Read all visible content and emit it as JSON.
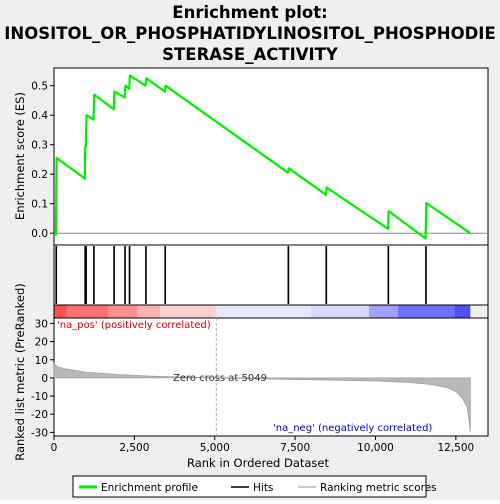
{
  "chart_data": {
    "type": "line",
    "title_lines": [
      "Enrichment plot:",
      "INOSITOL_OR_PHOSPHATIDYLINOSITOL_PHOSPHODIE",
      "STERASE_ACTIVITY"
    ],
    "top_panel": {
      "ylabel": "Enrichment score (ES)",
      "ylim": [
        -0.04,
        0.56
      ],
      "yticks": [
        0.0,
        0.1,
        0.2,
        0.3,
        0.4,
        0.5
      ],
      "ytick_labels": [
        "0.0",
        "0.1",
        "0.2",
        "0.3",
        "0.4",
        "0.5"
      ],
      "series_name": "Enrichment profile",
      "color": "#00ee00",
      "points": [
        [
          0,
          0.0
        ],
        [
          60,
          -0.005
        ],
        [
          80,
          0.255
        ],
        [
          960,
          0.185
        ],
        [
          970,
          0.295
        ],
        [
          990,
          0.295
        ],
        [
          1010,
          0.4
        ],
        [
          1230,
          0.385
        ],
        [
          1250,
          0.47
        ],
        [
          1860,
          0.42
        ],
        [
          1880,
          0.48
        ],
        [
          2200,
          0.46
        ],
        [
          2220,
          0.5
        ],
        [
          2340,
          0.49
        ],
        [
          2360,
          0.535
        ],
        [
          2850,
          0.5
        ],
        [
          2870,
          0.525
        ],
        [
          3450,
          0.48
        ],
        [
          3470,
          0.5
        ],
        [
          7280,
          0.205
        ],
        [
          7300,
          0.22
        ],
        [
          8460,
          0.13
        ],
        [
          8480,
          0.155
        ],
        [
          10390,
          0.015
        ],
        [
          10410,
          0.075
        ],
        [
          11560,
          -0.018
        ],
        [
          11580,
          0.102
        ],
        [
          12950,
          0.0
        ]
      ]
    },
    "hits": {
      "label": "Hits",
      "positions": [
        60,
        80,
        960,
        970,
        990,
        1010,
        1230,
        1250,
        1860,
        1880,
        2200,
        2220,
        2340,
        2360,
        2850,
        2870,
        3450,
        3470,
        7280,
        7300,
        8460,
        8480,
        10390,
        10410,
        11560,
        11580
      ]
    },
    "heat_band": {
      "colors": [
        "#ff5050",
        "#ff7070",
        "#ff9090",
        "#ffb0b0",
        "#ffd0d0",
        "#e8e8ff",
        "#d8d8ff",
        "#a0a0ff",
        "#7070ff",
        "#5050ee",
        "#3030cc"
      ],
      "breaks": [
        0,
        400,
        1700,
        2600,
        3300,
        5049,
        8000,
        9800,
        10700,
        12450,
        12950
      ]
    },
    "bottom_panel": {
      "ylabel": "Ranked list metric (PreRanked)",
      "ylim": [
        -32,
        33
      ],
      "yticks": [
        -30,
        -20,
        -10,
        0,
        10,
        20,
        30
      ],
      "ytick_labels": [
        "-30",
        "-20",
        "-10",
        "0",
        "10",
        "20",
        "30"
      ],
      "series_name": "Ranking metric scores",
      "color": "#b8b8b8",
      "points": [
        [
          0,
          8
        ],
        [
          100,
          6.2
        ],
        [
          400,
          4.8
        ],
        [
          1000,
          3.2
        ],
        [
          2000,
          1.8
        ],
        [
          3000,
          1.0
        ],
        [
          4000,
          0.5
        ],
        [
          5049,
          0
        ],
        [
          6000,
          -0.4
        ],
        [
          7000,
          -0.7
        ],
        [
          8000,
          -1.0
        ],
        [
          9000,
          -1.3
        ],
        [
          10000,
          -1.7
        ],
        [
          11000,
          -2.4
        ],
        [
          11700,
          -3.5
        ],
        [
          12200,
          -5.2
        ],
        [
          12500,
          -7.5
        ],
        [
          12700,
          -11
        ],
        [
          12850,
          -16
        ],
        [
          12900,
          -22
        ],
        [
          12940,
          -28
        ],
        [
          12950,
          -30
        ]
      ],
      "annotations": {
        "pos_label": "'na_pos' (positively correlated)",
        "neg_label": "'na_neg' (negatively correlated)",
        "zero_cross": "Zero cross at 5049",
        "zero_cross_x": 5049,
        "pos_color": "#cc0000",
        "neg_color": "#0000cc"
      }
    },
    "xlabel": "Rank in Ordered Dataset",
    "xlim": [
      0,
      13500
    ],
    "xticks": [
      0,
      2500,
      5000,
      7500,
      10000,
      12500
    ],
    "xtick_labels": [
      "0",
      "2,500",
      "5,000",
      "7,500",
      "10,000",
      "12,500"
    ],
    "legend": {
      "placement": "bottom",
      "items": [
        {
          "label": "Enrichment profile",
          "color": "#00ee00"
        },
        {
          "label": "Hits",
          "color": "#000000"
        },
        {
          "label": "Ranking metric scores",
          "color": "#b8b8b8"
        }
      ]
    }
  }
}
